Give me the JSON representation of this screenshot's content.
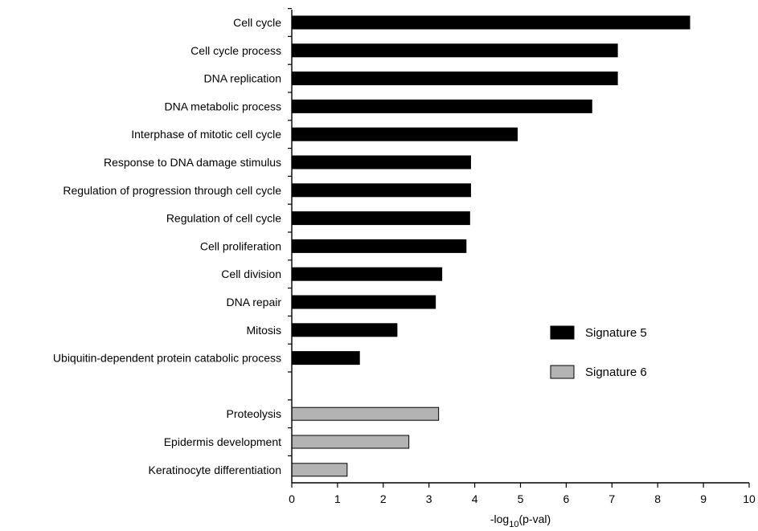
{
  "chart_data": {
    "type": "bar",
    "orientation": "horizontal",
    "xlabel_prefix": "-log",
    "xlabel_sub": "10",
    "xlabel_suffix": "(p-val)",
    "xlim": [
      0,
      10
    ],
    "xticks": [
      "0",
      "1",
      "2",
      "3",
      "4",
      "5",
      "6",
      "7",
      "8",
      "9",
      "10"
    ],
    "grid": false,
    "legend_position": "right",
    "series": [
      {
        "name": "Signature 5",
        "color": "#000000",
        "categories": [
          "Cell cycle",
          "Cell cycle process",
          "DNA replication",
          "DNA metabolic process",
          "Interphase of mitotic cell cycle",
          "Response to DNA damage stimulus",
          "Regulation of progression through cell cycle",
          "Regulation of cell cycle",
          "Cell proliferation",
          "Cell division",
          "DNA repair",
          "Mitosis",
          "Ubiquitin-dependent protein catabolic process"
        ],
        "values": [
          8.7,
          7.12,
          7.12,
          6.56,
          4.93,
          3.91,
          3.91,
          3.89,
          3.81,
          3.28,
          3.14,
          2.3,
          1.48
        ]
      },
      {
        "name": "Signature 6",
        "color": "#b3b3b3",
        "categories": [
          "Proteolysis",
          "Epidermis development",
          "Keratinocyte differentiation"
        ],
        "values": [
          3.21,
          2.56,
          1.21
        ]
      }
    ]
  }
}
